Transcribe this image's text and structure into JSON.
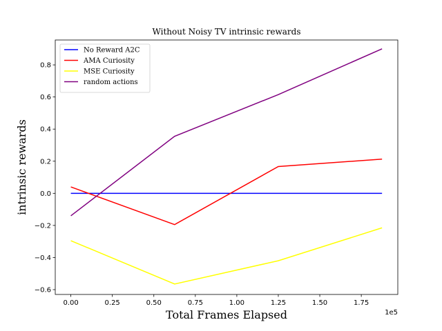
{
  "chart_data": {
    "type": "line",
    "title": "Without Noisy TV  intrinsic rewards",
    "xlabel": "Total Frames Elapsed",
    "ylabel": "intrinsic rewards",
    "x_offset_label": "1e5",
    "x_scale": 100000,
    "xlim": [
      -0.094,
      1.97
    ],
    "ylim": [
      -0.63,
      0.955
    ],
    "x_ticks": [
      0,
      0.25,
      0.5,
      0.75,
      1.0,
      1.25,
      1.5,
      1.75
    ],
    "x_tick_labels": [
      "0.00",
      "0.25",
      "0.50",
      "0.75",
      "1.00",
      "1.25",
      "1.50",
      "1.75"
    ],
    "y_ticks": [
      -0.6,
      -0.4,
      -0.2,
      0.0,
      0.2,
      0.4,
      0.6,
      0.8
    ],
    "y_tick_labels": [
      "−0.6",
      "−0.4",
      "−0.2",
      "0.0",
      "0.2",
      "0.4",
      "0.6",
      "0.8"
    ],
    "x": [
      0,
      0.625,
      1.25,
      1.875
    ],
    "legend_position": "upper-left",
    "grid": false,
    "series": [
      {
        "name": "No Reward A2C",
        "color": "#0000ff",
        "values": [
          0.0,
          0.0,
          0.0,
          0.0
        ]
      },
      {
        "name": "AMA Curiosity",
        "color": "#ff0000",
        "values": [
          0.04,
          -0.195,
          0.167,
          0.213
        ]
      },
      {
        "name": "MSE Curiosity",
        "color": "#ffff00",
        "values": [
          -0.295,
          -0.565,
          -0.42,
          -0.215
        ]
      },
      {
        "name": "random actions",
        "color": "#800080",
        "values": [
          -0.14,
          0.355,
          0.615,
          0.9
        ]
      }
    ]
  }
}
